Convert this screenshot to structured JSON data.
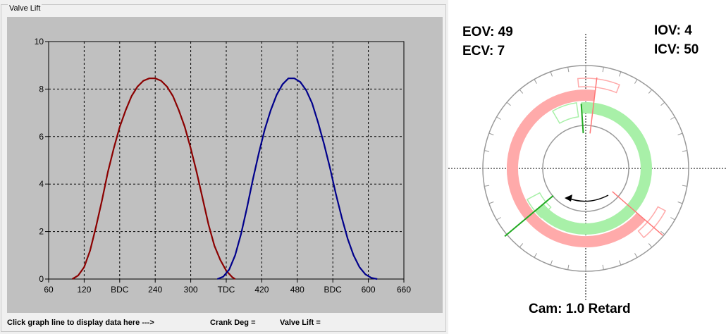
{
  "window": {
    "group_title": "Valve Lift"
  },
  "chart_data": {
    "type": "line",
    "xlim": [
      60,
      660
    ],
    "ylim": [
      0,
      10
    ],
    "x_ticks": [
      60,
      120,
      180,
      240,
      300,
      360,
      420,
      480,
      540,
      600,
      660
    ],
    "x_tick_labels": [
      "60",
      "120",
      "BDC",
      "240",
      "300",
      "TDC",
      "420",
      "480",
      "BDC",
      "600",
      "660"
    ],
    "y_ticks": [
      0,
      2,
      4,
      6,
      8,
      10
    ],
    "y_tick_labels": [
      "0",
      "2",
      "4",
      "6",
      "8",
      "10"
    ],
    "grid": true,
    "title": "",
    "xlabel": "",
    "ylabel": "",
    "series": [
      {
        "color": "#8b0000",
        "x": [
          100,
          110,
          120,
          130,
          140,
          150,
          160,
          170,
          180,
          190,
          200,
          210,
          220,
          230,
          240,
          250,
          260,
          270,
          280,
          290,
          300,
          310,
          320,
          330,
          340,
          350,
          360,
          370,
          375
        ],
        "y": [
          0,
          0.15,
          0.5,
          1.2,
          2.2,
          3.3,
          4.5,
          5.5,
          6.4,
          7.1,
          7.7,
          8.1,
          8.35,
          8.45,
          8.45,
          8.35,
          8.1,
          7.7,
          7.1,
          6.4,
          5.5,
          4.5,
          3.4,
          2.3,
          1.4,
          0.8,
          0.35,
          0.08,
          0
        ]
      },
      {
        "color": "#00008b",
        "x": [
          345,
          355,
          365,
          375,
          385,
          395,
          405,
          415,
          425,
          435,
          445,
          455,
          465,
          475,
          485,
          495,
          505,
          515,
          525,
          535,
          545,
          555,
          565,
          575,
          585,
          595,
          605,
          615
        ],
        "y": [
          0,
          0.1,
          0.4,
          1.0,
          1.9,
          3.0,
          4.2,
          5.3,
          6.3,
          7.1,
          7.75,
          8.2,
          8.45,
          8.45,
          8.3,
          7.95,
          7.4,
          6.6,
          5.7,
          4.7,
          3.6,
          2.6,
          1.7,
          1.0,
          0.5,
          0.2,
          0.05,
          0
        ]
      }
    ]
  },
  "status_bar": {
    "hint": "Click graph line to display data here   --->",
    "crank_label": "Crank Deg =",
    "crank_value": "",
    "lift_label": "Valve Lift =",
    "lift_value": ""
  },
  "timing": {
    "eov": "EOV: 49",
    "ecv": "ECV: 7",
    "iov": "IOV: 4",
    "icv": "ICV: 50",
    "cam": "Cam: 1.0 Retard",
    "exhaust_color": "#ffaaaa",
    "intake_color": "#a8f0a8",
    "eov_deg": 49,
    "ecv_deg": 7,
    "iov_deg": 4,
    "icv_deg": 50
  }
}
